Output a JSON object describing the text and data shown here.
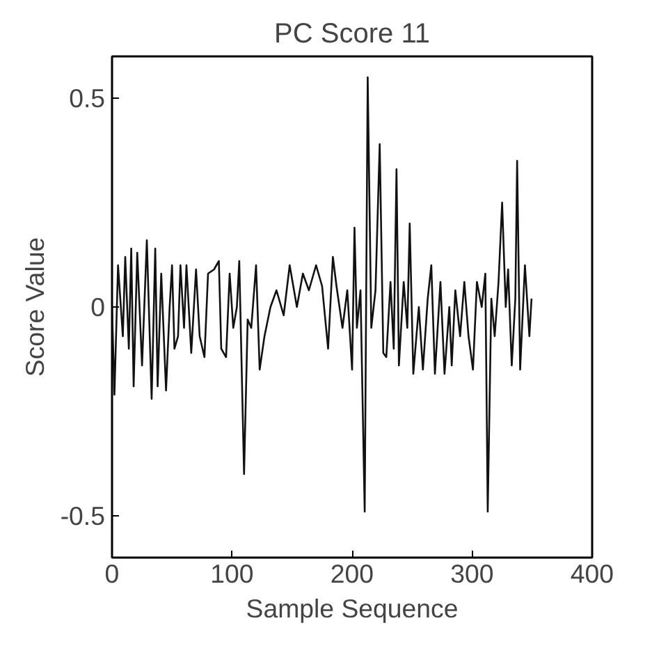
{
  "chart_data": {
    "type": "line",
    "title": "PC Score 11",
    "xlabel": "Sample Sequence",
    "ylabel": "Score Value",
    "xlim": [
      0,
      400
    ],
    "xticks": [
      0,
      100,
      200,
      300,
      400
    ],
    "ylim": [
      -0.6,
      0.6
    ],
    "yticks": [
      -0.5,
      0,
      0.5
    ],
    "grid": false,
    "marker": "none",
    "line_style": "solid",
    "series": [
      {
        "color": "#111111",
        "x": [
          0,
          2,
          5,
          9,
          11,
          14,
          16,
          18,
          21,
          25,
          29,
          33,
          36,
          38,
          41,
          45,
          48,
          50,
          52,
          55,
          57,
          60,
          62,
          66,
          70,
          73,
          77,
          80,
          85,
          89,
          91,
          95,
          98,
          101,
          104,
          106,
          110,
          113,
          116,
          120,
          123,
          127,
          132,
          137,
          143,
          148,
          154,
          159,
          164,
          170,
          175,
          180,
          184,
          187,
          192,
          196,
          200,
          202,
          204,
          207,
          210.5,
          213,
          216,
          219.5,
          223,
          226,
          228.5,
          232,
          234.7,
          237,
          239,
          243,
          246,
          248,
          251,
          255.6,
          259,
          263,
          266,
          269,
          273.6,
          277,
          281,
          283,
          286,
          290,
          293.5,
          297,
          300.7,
          304,
          308,
          311,
          313,
          316,
          318.8,
          322,
          325,
          328,
          330,
          333,
          336,
          337.5,
          340,
          344,
          347.7,
          349.5
        ],
        "values": [
          0.0,
          -0.21,
          0.1,
          -0.07,
          0.12,
          -0.1,
          0.14,
          -0.19,
          0.13,
          -0.14,
          0.16,
          -0.22,
          0.14,
          -0.19,
          0.08,
          -0.2,
          0.0,
          0.1,
          -0.1,
          -0.07,
          0.1,
          -0.05,
          0.1,
          -0.11,
          0.09,
          -0.07,
          -0.12,
          0.08,
          0.09,
          0.11,
          -0.1,
          -0.12,
          0.08,
          -0.05,
          0.0,
          0.11,
          -0.4,
          -0.03,
          -0.05,
          0.1,
          -0.15,
          -0.07,
          0.0,
          0.04,
          -0.02,
          0.1,
          0.0,
          0.08,
          0.04,
          0.1,
          0.05,
          -0.1,
          0.12,
          0.05,
          -0.05,
          0.04,
          -0.15,
          0.19,
          -0.05,
          0.04,
          -0.49,
          0.55,
          -0.05,
          0.04,
          0.39,
          -0.11,
          -0.12,
          0.06,
          -0.1,
          0.33,
          -0.14,
          0.06,
          -0.05,
          0.2,
          -0.16,
          0.0,
          -0.15,
          0.02,
          0.1,
          -0.16,
          0.06,
          -0.16,
          0.0,
          -0.14,
          0.04,
          -0.07,
          0.06,
          -0.07,
          -0.15,
          0.06,
          0.0,
          0.08,
          -0.49,
          0.02,
          -0.07,
          0.06,
          0.25,
          0.0,
          0.09,
          -0.14,
          0.02,
          0.35,
          -0.15,
          0.1,
          -0.07,
          0.02
        ]
      }
    ]
  }
}
